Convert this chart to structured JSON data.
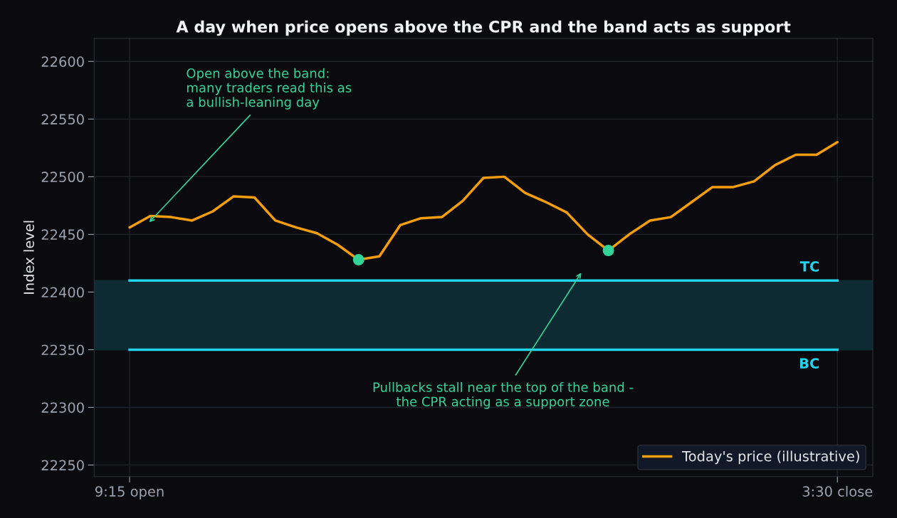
{
  "chart_data": {
    "type": "line",
    "title": "A day when price opens above the CPR and the band acts as support",
    "ylabel": "Index level",
    "categories": [
      "9:15 open",
      null,
      null,
      null,
      null,
      null,
      null,
      null,
      null,
      null,
      null,
      null,
      null,
      null,
      null,
      null,
      null,
      null,
      null,
      null,
      null,
      null,
      null,
      null,
      null,
      null,
      null,
      null,
      null,
      null,
      null,
      null,
      null,
      null,
      "3:30 close"
    ],
    "ylim": [
      22240,
      22620
    ],
    "yticks": [
      22250,
      22300,
      22350,
      22400,
      22450,
      22500,
      22550,
      22600
    ],
    "grid": true,
    "legend": "bottom right",
    "line_style": "solid",
    "series": [
      {
        "name": "Today's price (illustrative)",
        "color": "#f59e0b",
        "marker": "none",
        "values": [
          22456,
          22466,
          22465,
          22462,
          22470,
          22483,
          22482,
          22462,
          22456,
          22451,
          22441,
          22428,
          22431,
          22458,
          22464,
          22465,
          22479,
          22499,
          22500,
          22486,
          22478,
          22469,
          22450,
          22436,
          22450,
          22462,
          22465,
          22478,
          22491,
          22491,
          22496,
          22510,
          22519,
          22519,
          22530
        ]
      },
      {
        "type": "scatter",
        "color": "#34d399",
        "marker": "circle",
        "values": [
          null,
          null,
          null,
          null,
          null,
          null,
          null,
          null,
          null,
          null,
          null,
          22428,
          null,
          null,
          null,
          null,
          null,
          null,
          null,
          null,
          null,
          null,
          null,
          22436,
          null,
          null,
          null,
          null,
          null,
          null,
          null,
          null,
          null,
          null,
          null
        ]
      }
    ],
    "bands": [
      {
        "axis": "y",
        "from": 22350,
        "to": 22410,
        "color": "#0e2a33"
      }
    ],
    "ref_lines": [
      {
        "axis": "y",
        "value": 22410,
        "label": "TC",
        "color": "#22d3ee",
        "line_style": "solid"
      },
      {
        "axis": "y",
        "value": 22350,
        "label": "BC",
        "color": "#22d3ee",
        "line_style": "solid"
      }
    ],
    "annotations": [
      "Open above the band:\nmany traders read this as\na bullish-leaning day",
      "Pullbacks stall near the top of the band -\nthe CPR acting as a support zone"
    ]
  }
}
